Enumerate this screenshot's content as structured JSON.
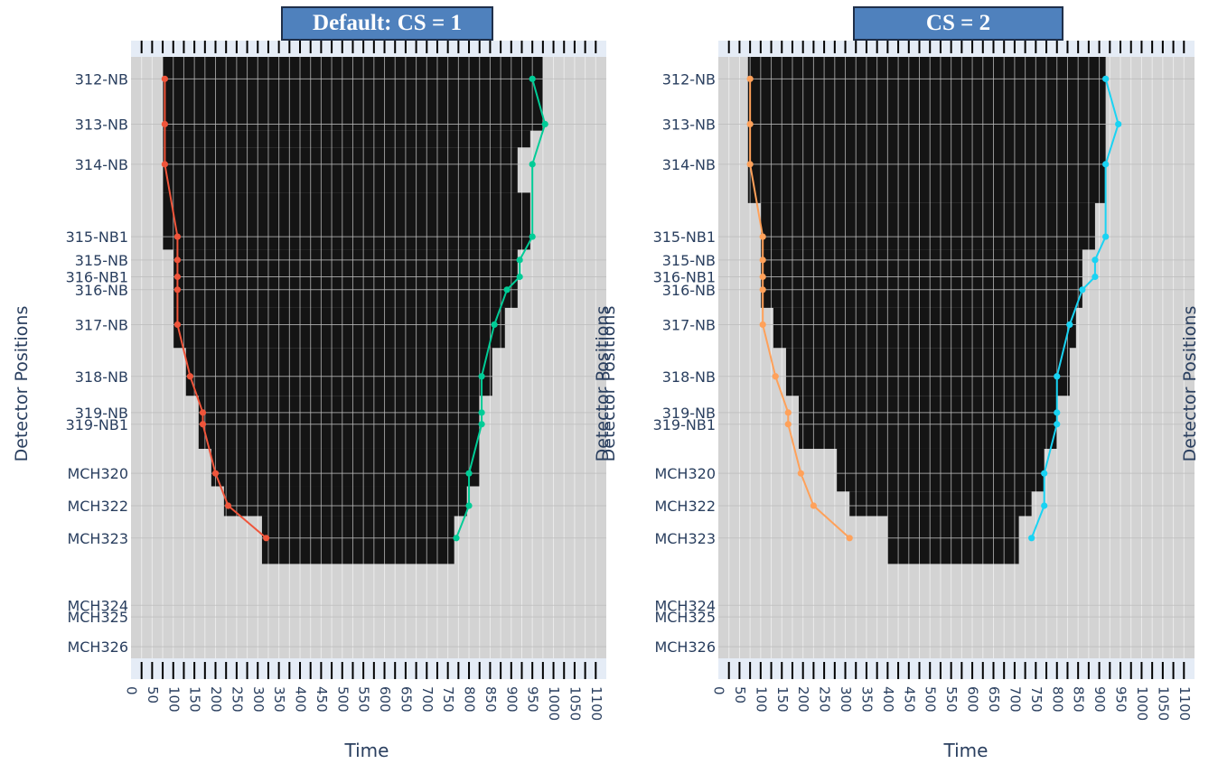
{
  "colors": {
    "plot_bg": "#d3d3d3",
    "block": "#141414",
    "strip": "#e5ecf6",
    "grid": "#ffffff",
    "axis_text": "#2a3f5f"
  },
  "chart_data": [
    {
      "type": "line",
      "panel_title": "Default: CS = 1",
      "xlabel": "Time",
      "ylabel": "Detector Positions",
      "right_ylabel": "Detector Positions",
      "xlim": [
        0,
        1125
      ],
      "xticks": [
        0,
        50,
        100,
        150,
        200,
        250,
        300,
        350,
        400,
        450,
        500,
        550,
        600,
        650,
        700,
        750,
        800,
        850,
        900,
        950,
        1000,
        1050,
        1100
      ],
      "ylim": [
        0,
        46.5
      ],
      "detectors": [
        {
          "label": "312-NB",
          "y": 1.7
        },
        {
          "label": "313-NB",
          "y": 5.2
        },
        {
          "label": "314-NB",
          "y": 8.3
        },
        {
          "label": "315-NB1",
          "y": 13.9
        },
        {
          "label": "315-NB",
          "y": 15.7
        },
        {
          "label": "316-NB1",
          "y": 17.0
        },
        {
          "label": "316-NB",
          "y": 18.0
        },
        {
          "label": "317-NB",
          "y": 20.7
        },
        {
          "label": "318-NB",
          "y": 24.7
        },
        {
          "label": "319-NB",
          "y": 27.5
        },
        {
          "label": "319-NB1",
          "y": 28.4
        },
        {
          "label": "MCH320",
          "y": 32.2
        },
        {
          "label": "MCH322",
          "y": 34.7
        },
        {
          "label": "MCH323",
          "y": 37.2
        },
        {
          "label": "MCH324",
          "y": 42.4
        },
        {
          "label": "MCH325",
          "y": 43.3
        },
        {
          "label": "MCH326",
          "y": 45.6
        }
      ],
      "heatmap_rows": [
        {
          "y0": 0,
          "y1": 5.7,
          "x0": 75,
          "x1": 975
        },
        {
          "y0": 5.7,
          "y1": 7.0,
          "x0": 75,
          "x1": 945
        },
        {
          "y0": 7.0,
          "y1": 10.5,
          "x0": 75,
          "x1": 915
        },
        {
          "y0": 10.5,
          "y1": 14.9,
          "x0": 75,
          "x1": 945
        },
        {
          "y0": 14.9,
          "y1": 19.4,
          "x0": 100,
          "x1": 915
        },
        {
          "y0": 19.4,
          "y1": 22.5,
          "x0": 100,
          "x1": 885
        },
        {
          "y0": 22.5,
          "y1": 26.2,
          "x0": 130,
          "x1": 855
        },
        {
          "y0": 26.2,
          "y1": 30.3,
          "x0": 160,
          "x1": 825
        },
        {
          "y0": 30.3,
          "y1": 33.2,
          "x0": 190,
          "x1": 825
        },
        {
          "y0": 33.2,
          "y1": 35.5,
          "x0": 220,
          "x1": 795
        },
        {
          "y0": 35.5,
          "y1": 39.2,
          "x0": 310,
          "x1": 765
        }
      ],
      "series": [
        {
          "color": "#ef553b",
          "x": [
            80,
            80,
            80,
            110,
            110,
            110,
            110,
            110,
            140,
            170,
            170,
            200,
            230,
            320
          ],
          "y_detectors": [
            "312-NB",
            "313-NB",
            "314-NB",
            "315-NB1",
            "315-NB",
            "316-NB1",
            "316-NB",
            "317-NB",
            "318-NB",
            "319-NB",
            "319-NB1",
            "MCH320",
            "MCH322",
            "MCH323"
          ]
        },
        {
          "color": "#00cc96",
          "x": [
            950,
            980,
            950,
            950,
            920,
            920,
            890,
            860,
            830,
            830,
            830,
            800,
            800,
            770
          ],
          "y_detectors": [
            "312-NB",
            "313-NB",
            "314-NB",
            "315-NB1",
            "315-NB",
            "316-NB1",
            "316-NB",
            "317-NB",
            "318-NB",
            "319-NB",
            "319-NB1",
            "MCH320",
            "MCH322",
            "MCH323"
          ]
        }
      ]
    },
    {
      "type": "line",
      "panel_title": "CS = 2",
      "xlabel": "Time",
      "ylabel": "Detector Positions",
      "right_ylabel": "Detector Positions",
      "xlim": [
        0,
        1125
      ],
      "xticks": [
        0,
        50,
        100,
        150,
        200,
        250,
        300,
        350,
        400,
        450,
        500,
        550,
        600,
        650,
        700,
        750,
        800,
        850,
        900,
        950,
        1000,
        1050,
        1100
      ],
      "ylim": [
        0,
        46.5
      ],
      "detectors": [
        {
          "label": "312-NB",
          "y": 1.7
        },
        {
          "label": "313-NB",
          "y": 5.2
        },
        {
          "label": "314-NB",
          "y": 8.3
        },
        {
          "label": "315-NB1",
          "y": 13.9
        },
        {
          "label": "315-NB",
          "y": 15.7
        },
        {
          "label": "316-NB1",
          "y": 17.0
        },
        {
          "label": "316-NB",
          "y": 18.0
        },
        {
          "label": "317-NB",
          "y": 20.7
        },
        {
          "label": "318-NB",
          "y": 24.7
        },
        {
          "label": "319-NB",
          "y": 27.5
        },
        {
          "label": "319-NB1",
          "y": 28.4
        },
        {
          "label": "MCH320",
          "y": 32.2
        },
        {
          "label": "MCH322",
          "y": 34.7
        },
        {
          "label": "MCH323",
          "y": 37.2
        },
        {
          "label": "MCH324",
          "y": 42.4
        },
        {
          "label": "MCH325",
          "y": 43.3
        },
        {
          "label": "MCH326",
          "y": 45.6
        }
      ],
      "heatmap_rows": [
        {
          "y0": 0,
          "y1": 11.3,
          "x0": 70,
          "x1": 915
        },
        {
          "y0": 11.3,
          "y1": 14.9,
          "x0": 100,
          "x1": 890
        },
        {
          "y0": 14.9,
          "y1": 19.4,
          "x0": 100,
          "x1": 860
        },
        {
          "y0": 19.4,
          "y1": 22.5,
          "x0": 130,
          "x1": 845
        },
        {
          "y0": 22.5,
          "y1": 26.2,
          "x0": 160,
          "x1": 830
        },
        {
          "y0": 26.2,
          "y1": 30.3,
          "x0": 190,
          "x1": 800
        },
        {
          "y0": 30.3,
          "y1": 33.6,
          "x0": 280,
          "x1": 770
        },
        {
          "y0": 33.6,
          "y1": 35.5,
          "x0": 310,
          "x1": 740
        },
        {
          "y0": 35.5,
          "y1": 39.2,
          "x0": 400,
          "x1": 710
        }
      ],
      "series": [
        {
          "color": "#ffa15a",
          "x": [
            75,
            75,
            75,
            105,
            105,
            105,
            105,
            105,
            135,
            165,
            165,
            195,
            225,
            310
          ],
          "y_detectors": [
            "312-NB",
            "313-NB",
            "314-NB",
            "315-NB1",
            "315-NB",
            "316-NB1",
            "316-NB",
            "317-NB",
            "318-NB",
            "319-NB",
            "319-NB1",
            "MCH320",
            "MCH322",
            "MCH323"
          ]
        },
        {
          "color": "#19d3f3",
          "x": [
            915,
            945,
            915,
            915,
            890,
            890,
            860,
            830,
            800,
            800,
            800,
            770,
            770,
            740
          ],
          "y_detectors": [
            "312-NB",
            "313-NB",
            "314-NB",
            "315-NB1",
            "315-NB",
            "316-NB1",
            "316-NB",
            "317-NB",
            "318-NB",
            "319-NB",
            "319-NB1",
            "MCH320",
            "MCH322",
            "MCH323"
          ]
        }
      ]
    }
  ]
}
